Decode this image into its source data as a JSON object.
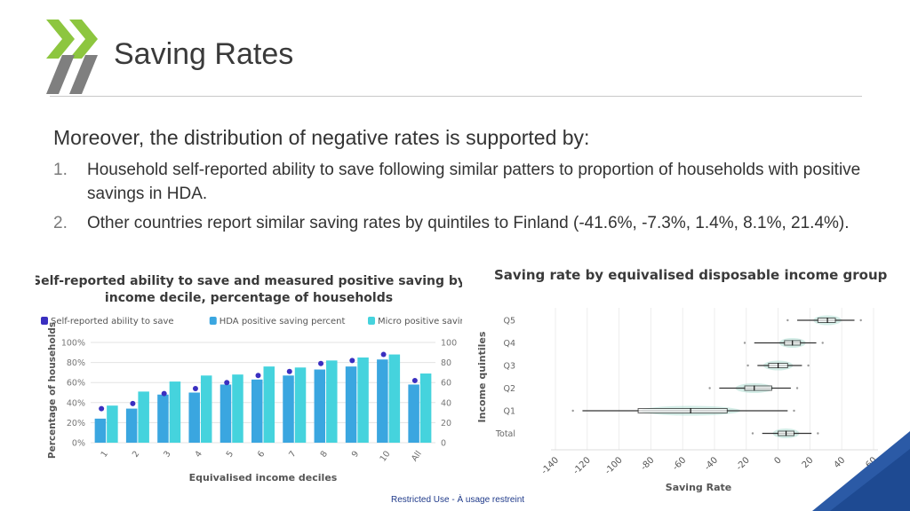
{
  "slide": {
    "title": "Saving Rates",
    "intro": "Moreover, the distribution of negative rates is supported by:",
    "points": [
      {
        "num": "1.",
        "text": "Household self-reported ability to save following similar patters to proportion of households with positive savings in HDA."
      },
      {
        "num": "2.",
        "text": "Other countries report similar saving rates by quintiles to Finland (-41.6%, -7.3%, 1.4%, 8.1%, 21.4%)."
      }
    ],
    "footer": "Restricted Use - À usage restreint"
  },
  "colors": {
    "hda": "#3aa6e0",
    "micro": "#45d3dd",
    "self_reported": "#3a2fc0",
    "logo_green": "#8dc63f",
    "logo_gray": "#7f7f7f",
    "corner_blue": "#2b5aa6"
  },
  "chart_data": [
    {
      "type": "bar",
      "title": "Self-reported ability to save and measured positive saving by income decile, percentage of households",
      "xlabel": "Equivalised income deciles",
      "ylabel": "Percentage of households",
      "ylim": [
        0,
        100
      ],
      "y_ticks_left": [
        "0%",
        "20%",
        "40%",
        "60%",
        "80%",
        "100%"
      ],
      "y_ticks_right": [
        "0",
        "20",
        "40",
        "60",
        "80",
        "100"
      ],
      "categories": [
        "1",
        "2",
        "3",
        "4",
        "5",
        "6",
        "7",
        "8",
        "9",
        "10",
        "All"
      ],
      "legend_position": "top",
      "series": [
        {
          "name": "Self-reported ability to save",
          "kind": "dot",
          "values": [
            34,
            39,
            49,
            54,
            60,
            67,
            71,
            79,
            82,
            88,
            62
          ]
        },
        {
          "name": "HDA positive saving percent",
          "kind": "bar",
          "values": [
            24,
            34,
            48,
            50,
            58,
            63,
            67,
            73,
            76,
            83,
            58
          ]
        },
        {
          "name": "Micro positive saving percent",
          "kind": "bar",
          "values": [
            37,
            51,
            61,
            67,
            68,
            76,
            75,
            82,
            85,
            88,
            69
          ]
        }
      ]
    },
    {
      "type": "box",
      "title": "Saving rate by equivalised disposable income group",
      "xlabel": "Saving Rate",
      "ylabel": "Income quintiles",
      "xlim": [
        -140,
        60
      ],
      "x_ticks": [
        "-140",
        "-120",
        "-100",
        "-80",
        "-60",
        "-40",
        "-20",
        "0",
        "20",
        "40",
        "60"
      ],
      "categories": [
        "Q5",
        "Q4",
        "Q3",
        "Q2",
        "Q1",
        "Total"
      ],
      "boxes": [
        {
          "q1": 25,
          "median": 31,
          "q3": 36,
          "lo": 12,
          "hi": 48
        },
        {
          "q1": 4,
          "median": 9,
          "q3": 14,
          "lo": -15,
          "hi": 24
        },
        {
          "q1": -6,
          "median": 0,
          "q3": 6,
          "lo": -13,
          "hi": 15
        },
        {
          "q1": -21,
          "median": -15,
          "q3": -4,
          "lo": -37,
          "hi": 8
        },
        {
          "q1": -88,
          "median": -55,
          "q3": -32,
          "lo": -123,
          "hi": 6
        },
        {
          "q1": 0,
          "median": 5,
          "q3": 10,
          "lo": -10,
          "hi": 21
        }
      ]
    }
  ]
}
